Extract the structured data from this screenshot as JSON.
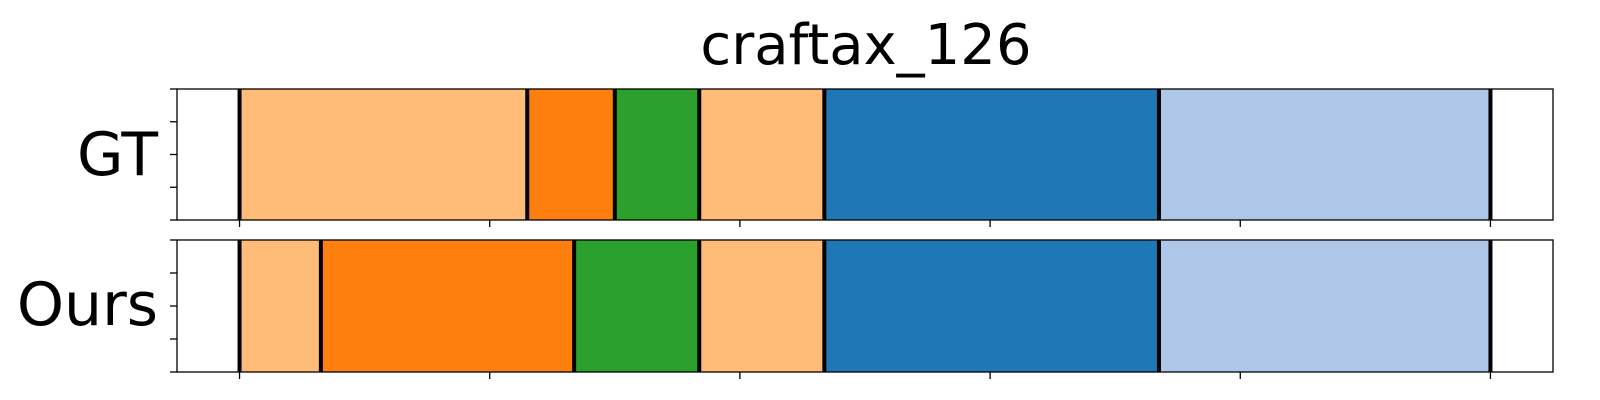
{
  "chart_data": {
    "type": "bar",
    "title": "craftax_126",
    "rows": [
      {
        "label": "GT",
        "segments": [
          {
            "start": 0,
            "end": 46,
            "color": "#ffbb78"
          },
          {
            "start": 46,
            "end": 60,
            "color": "#ff7f0e"
          },
          {
            "start": 60,
            "end": 73.5,
            "color": "#2ca02c"
          },
          {
            "start": 73.5,
            "end": 93.5,
            "color": "#ffbb78"
          },
          {
            "start": 93.5,
            "end": 147,
            "color": "#1f77b4"
          },
          {
            "start": 147,
            "end": 200,
            "color": "#aec7e8"
          }
        ]
      },
      {
        "label": "Ours",
        "segments": [
          {
            "start": 0,
            "end": 13,
            "color": "#ffbb78"
          },
          {
            "start": 13,
            "end": 53.5,
            "color": "#ff7f0e"
          },
          {
            "start": 53.5,
            "end": 73.5,
            "color": "#2ca02c"
          },
          {
            "start": 73.5,
            "end": 93.5,
            "color": "#ffbb78"
          },
          {
            "start": 93.5,
            "end": 147,
            "color": "#1f77b4"
          },
          {
            "start": 147,
            "end": 200,
            "color": "#aec7e8"
          }
        ]
      }
    ],
    "xlim": [
      -10,
      210
    ],
    "xticks": [
      0,
      40,
      80,
      120,
      160,
      200
    ],
    "ytick_count": 5,
    "grid": false,
    "legend": "none"
  }
}
